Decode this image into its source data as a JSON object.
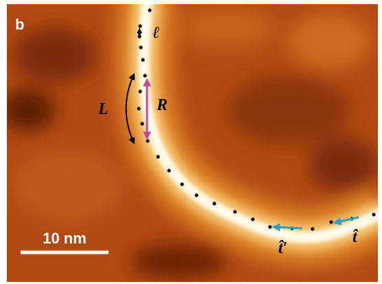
{
  "panel_label": "b",
  "annotations": {
    "segment": "ℓ",
    "arc_length": "L",
    "chord": "R",
    "tangent_prime": "t̂′",
    "tangent": "t̂"
  },
  "scale_bar": {
    "label": "10 nm"
  }
}
